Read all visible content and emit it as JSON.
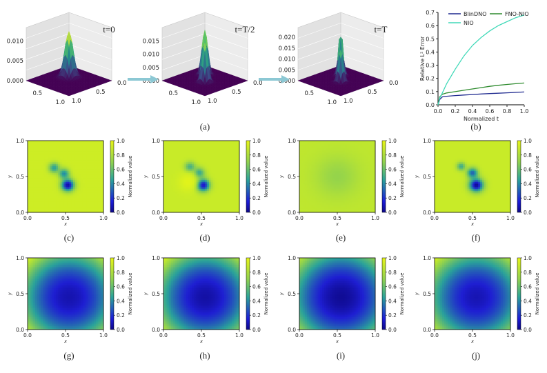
{
  "figure": {
    "captions": [
      "(a)",
      "(b)",
      "(c)",
      "(d)",
      "(e)",
      "(f)",
      "(g)",
      "(h)",
      "(i)",
      "(j)"
    ]
  },
  "chart_data": [
    {
      "id": "a",
      "type": "surface3d",
      "panels": [
        {
          "title": "t=0",
          "zticks": [
            "0.000",
            "0.005",
            "0.010"
          ],
          "peaks": [
            {
              "x": 0.38,
              "y": 0.38,
              "h": 1.0,
              "w": 0.07
            }
          ],
          "zmax": 0.012
        },
        {
          "title": "t=T/2",
          "zticks": [
            "0.000",
            "0.005",
            "0.010",
            "0.015"
          ],
          "peaks": [
            {
              "x": 0.3,
              "y": 0.3,
              "h": 1.0,
              "w": 0.05
            },
            {
              "x": 0.55,
              "y": 0.55,
              "h": 0.9,
              "w": 0.05
            }
          ],
          "zmax": 0.018
        },
        {
          "title": "t=T",
          "zticks": [
            "0.000",
            "0.005",
            "0.010",
            "0.015",
            "0.020"
          ],
          "peaks": [
            {
              "x": 0.33,
              "y": 0.33,
              "h": 1.0,
              "w": 0.04
            },
            {
              "x": 0.55,
              "y": 0.55,
              "h": 0.75,
              "w": 0.045
            }
          ],
          "zmax": 0.022
        }
      ],
      "xticks": [
        "0.5",
        "1.0"
      ],
      "yticks": [
        "0.0",
        "0.5",
        "1.0"
      ]
    },
    {
      "id": "b",
      "type": "line",
      "xlabel": "Normalized t",
      "ylabel": "Relative L² Error",
      "xlim": [
        0,
        1
      ],
      "ylim": [
        0,
        0.7
      ],
      "xticks": [
        "0.0",
        "0.2",
        "0.4",
        "0.6",
        "0.8",
        "1.0"
      ],
      "yticks": [
        "0.0",
        "0.1",
        "0.2",
        "0.3",
        "0.4",
        "0.5",
        "0.6",
        "0.7"
      ],
      "x": [
        0,
        0.02,
        0.05,
        0.1,
        0.2,
        0.3,
        0.4,
        0.5,
        0.6,
        0.7,
        0.8,
        0.9,
        1.0
      ],
      "series": [
        {
          "name": "BlinDNO",
          "color": "#1f2a8f",
          "values": [
            0.0,
            0.04,
            0.06,
            0.065,
            0.07,
            0.074,
            0.078,
            0.082,
            0.085,
            0.088,
            0.091,
            0.094,
            0.097
          ]
        },
        {
          "name": "FNO-NIO",
          "color": "#2e8b2e",
          "values": [
            0.0,
            0.06,
            0.08,
            0.09,
            0.1,
            0.11,
            0.12,
            0.13,
            0.14,
            0.148,
            0.154,
            0.16,
            0.165
          ]
        },
        {
          "name": "NIO",
          "color": "#40d9b8",
          "values": [
            0.0,
            0.05,
            0.09,
            0.16,
            0.27,
            0.37,
            0.45,
            0.51,
            0.56,
            0.6,
            0.63,
            0.66,
            0.68
          ]
        }
      ]
    },
    {
      "id": "row2",
      "type": "heatmap",
      "colorbar_label": "Normalized value",
      "colorbar_ticks": [
        "0.0",
        "0.2",
        "0.4",
        "0.6",
        "0.8",
        "1.0"
      ],
      "xlabel": "x",
      "ylabel": "y",
      "xticks": [
        "0.0",
        "0.5",
        "1.0"
      ],
      "yticks": [
        "0.0",
        "0.5",
        "1.0"
      ],
      "panels": [
        {
          "id": "c",
          "background": 0.9,
          "blobs": [
            {
              "x": 0.35,
              "y": 0.62,
              "r": 0.05,
              "v": 0.45
            },
            {
              "x": 0.48,
              "y": 0.54,
              "r": 0.05,
              "v": 0.4
            },
            {
              "x": 0.53,
              "y": 0.38,
              "r": 0.06,
              "v": 0.05
            }
          ]
        },
        {
          "id": "d",
          "background": 0.88,
          "blobs": [
            {
              "x": 0.35,
              "y": 0.63,
              "r": 0.05,
              "v": 0.5
            },
            {
              "x": 0.47,
              "y": 0.55,
              "r": 0.05,
              "v": 0.45
            },
            {
              "x": 0.52,
              "y": 0.38,
              "r": 0.06,
              "v": 0.05
            },
            {
              "x": 0.32,
              "y": 0.42,
              "r": 0.09,
              "v": 0.98
            }
          ]
        },
        {
          "id": "e",
          "background": 0.85,
          "blobs": [
            {
              "x": 0.5,
              "y": 0.5,
              "r": 0.2,
              "v": 0.72
            }
          ]
        },
        {
          "id": "f",
          "background": 0.88,
          "blobs": [
            {
              "x": 0.35,
              "y": 0.64,
              "r": 0.04,
              "v": 0.5
            },
            {
              "x": 0.5,
              "y": 0.55,
              "r": 0.05,
              "v": 0.3
            },
            {
              "x": 0.55,
              "y": 0.38,
              "r": 0.065,
              "v": 0.02
            }
          ]
        }
      ]
    },
    {
      "id": "row3",
      "type": "heatmap",
      "colorbar_label": "Normalized value",
      "colorbar_ticks": [
        "0.0",
        "0.2",
        "0.4",
        "0.6",
        "0.8",
        "1.0"
      ],
      "xlabel": "x",
      "ylabel": "y",
      "xticks": [
        "0.0",
        "0.5",
        "1.0"
      ],
      "yticks": [
        "0.0",
        "0.5",
        "1.0"
      ],
      "panels": [
        {
          "id": "g",
          "center": [
            0.55,
            0.45
          ],
          "min": 0.08,
          "max": 0.95
        },
        {
          "id": "h",
          "center": [
            0.55,
            0.45
          ],
          "min": 0.06,
          "max": 0.95
        },
        {
          "id": "i",
          "center": [
            0.55,
            0.45
          ],
          "min": 0.03,
          "max": 0.85
        },
        {
          "id": "j",
          "center": [
            0.55,
            0.45
          ],
          "min": 0.09,
          "max": 0.95
        }
      ]
    }
  ]
}
